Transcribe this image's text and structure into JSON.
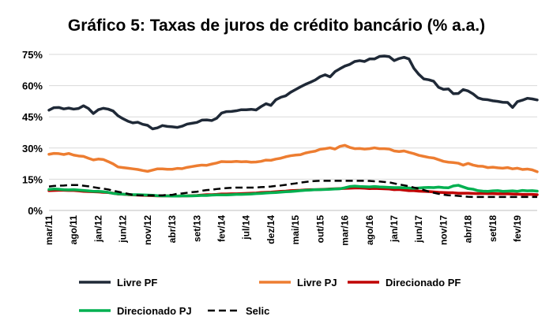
{
  "chart_data": {
    "type": "line",
    "title": "Gráfico 5: Taxas de juros de crédito bancário (% a.a.)",
    "xlabel": "",
    "ylabel": "",
    "ylim": [
      0,
      75
    ],
    "y_ticks": [
      0,
      15,
      30,
      45,
      60,
      75
    ],
    "y_tick_labels": [
      "0%",
      "15%",
      "30%",
      "45%",
      "60%",
      "75%"
    ],
    "grid": "horizontal",
    "legend_position": "bottom",
    "x_start": "mar/11",
    "n_months": 100,
    "x_tick_labels": [
      "mar/11",
      "ago/11",
      "jan/12",
      "jun/12",
      "nov/12",
      "abr/13",
      "set/13",
      "fev/14",
      "jul/14",
      "dez/14",
      "mai/15",
      "out/15",
      "mar/16",
      "ago/16",
      "jan/17",
      "jun/17",
      "nov/17",
      "abr/18",
      "set/18",
      "fev/19"
    ],
    "series": [
      {
        "name": "Livre PF",
        "color": "#1f2937",
        "dash": false,
        "values": [
          48.2,
          49.4,
          49.5,
          48.8,
          49.2,
          48.7,
          49.0,
          50.3,
          49.0,
          46.6,
          48.4,
          49.1,
          48.7,
          47.8,
          45.5,
          44.1,
          42.9,
          42.1,
          42.4,
          41.4,
          40.9,
          39.2,
          39.7,
          40.8,
          40.4,
          40.2,
          39.9,
          40.5,
          41.5,
          41.9,
          42.3,
          43.4,
          43.5,
          43.2,
          44.3,
          46.8,
          47.5,
          47.6,
          47.9,
          48.4,
          48.4,
          48.6,
          48.3,
          49.9,
          51.3,
          50.5,
          53.2,
          54.4,
          55.1,
          56.8,
          58.1,
          59.4,
          60.6,
          61.6,
          62.7,
          64.3,
          65.2,
          64.2,
          66.7,
          68.1,
          69.4,
          70.2,
          71.6,
          72.0,
          71.6,
          72.8,
          72.8,
          74.0,
          74.2,
          73.9,
          72.0,
          73.0,
          73.6,
          72.8,
          68.3,
          65.4,
          63.2,
          62.8,
          62.1,
          59.2,
          58.2,
          58.4,
          56.1,
          56.2,
          58.1,
          57.4,
          56.0,
          54.1,
          53.4,
          53.2,
          52.7,
          52.4,
          52.0,
          51.9,
          49.5,
          52.3,
          53.0,
          53.9,
          53.6,
          53.1
        ]
      },
      {
        "name": "Livre PJ",
        "color": "#ed7d31",
        "dash": false,
        "values": [
          27.0,
          27.4,
          27.3,
          26.9,
          27.4,
          26.6,
          26.2,
          26.0,
          25.1,
          24.3,
          24.7,
          24.5,
          23.5,
          22.4,
          20.9,
          20.6,
          20.3,
          20.0,
          19.7,
          19.2,
          18.8,
          19.4,
          20.0,
          20.0,
          19.8,
          19.8,
          20.2,
          20.1,
          20.7,
          21.1,
          21.5,
          21.8,
          21.7,
          22.3,
          22.8,
          23.5,
          23.4,
          23.4,
          23.6,
          23.4,
          23.5,
          23.2,
          23.3,
          23.6,
          24.2,
          24.1,
          24.7,
          25.1,
          25.8,
          26.3,
          26.6,
          26.8,
          27.6,
          28.1,
          28.5,
          29.4,
          29.7,
          30.1,
          29.5,
          30.8,
          31.3,
          30.3,
          29.7,
          29.8,
          29.5,
          29.7,
          30.1,
          29.7,
          29.7,
          29.5,
          28.6,
          28.3,
          28.6,
          27.9,
          27.3,
          26.5,
          26.0,
          25.5,
          25.2,
          24.4,
          23.6,
          23.2,
          23.0,
          22.7,
          21.8,
          22.6,
          21.8,
          21.3,
          21.2,
          20.6,
          20.8,
          20.5,
          20.3,
          20.6,
          20.0,
          20.3,
          19.7,
          19.9,
          19.5,
          18.6
        ]
      },
      {
        "name": "Direcionado PF",
        "color": "#c00000",
        "dash": false,
        "values": [
          9.5,
          9.6,
          9.7,
          9.7,
          9.6,
          9.6,
          9.4,
          9.2,
          9.1,
          9.0,
          8.9,
          8.7,
          8.6,
          8.3,
          7.9,
          7.8,
          7.6,
          7.5,
          7.4,
          7.3,
          7.2,
          7.1,
          7.0,
          7.0,
          7.0,
          7.0,
          6.9,
          7.0,
          7.0,
          7.1,
          7.2,
          7.4,
          7.6,
          7.6,
          7.7,
          7.9,
          7.9,
          8.0,
          8.0,
          8.1,
          8.2,
          8.3,
          8.4,
          8.6,
          8.7,
          8.8,
          9.0,
          9.2,
          9.3,
          9.5,
          9.6,
          9.7,
          9.9,
          10.0,
          10.0,
          10.1,
          10.2,
          10.3,
          10.4,
          10.5,
          10.6,
          10.7,
          10.8,
          10.8,
          10.7,
          10.5,
          10.6,
          10.5,
          10.4,
          10.3,
          10.0,
          10.1,
          9.8,
          9.5,
          9.5,
          9.3,
          9.2,
          9.1,
          8.9,
          8.7,
          8.6,
          8.5,
          8.5,
          8.3,
          8.3,
          8.3,
          8.2,
          8.1,
          8.2,
          8.1,
          8.1,
          8.0,
          8.0,
          8.0,
          7.9,
          7.8,
          7.7,
          7.7,
          7.7,
          7.6
        ]
      },
      {
        "name": "Direcionado PJ",
        "color": "#00b050",
        "dash": false,
        "values": [
          10.1,
          10.3,
          10.2,
          10.0,
          9.9,
          10.0,
          9.8,
          9.6,
          9.4,
          9.2,
          9.2,
          9.0,
          8.7,
          8.2,
          8.0,
          7.8,
          7.7,
          7.6,
          7.6,
          7.5,
          7.4,
          7.3,
          7.1,
          7.0,
          7.0,
          6.9,
          6.9,
          7.0,
          7.0,
          7.0,
          7.1,
          7.2,
          7.2,
          7.4,
          7.5,
          7.5,
          7.5,
          7.6,
          7.7,
          7.7,
          7.8,
          7.9,
          8.1,
          8.2,
          8.4,
          8.5,
          8.6,
          8.8,
          9.0,
          9.1,
          9.3,
          9.5,
          9.7,
          9.8,
          10.0,
          10.0,
          10.1,
          10.2,
          10.3,
          10.4,
          10.9,
          11.5,
          11.7,
          11.5,
          11.4,
          11.3,
          11.5,
          11.3,
          11.2,
          11.1,
          11.0,
          11.0,
          10.9,
          10.8,
          10.6,
          10.8,
          11.0,
          11.1,
          11.0,
          11.2,
          11.0,
          10.9,
          11.8,
          12.1,
          11.3,
          10.5,
          10.2,
          9.5,
          9.3,
          9.2,
          9.4,
          9.5,
          9.2,
          9.3,
          9.4,
          9.2,
          9.6,
          9.4,
          9.5,
          9.3
        ]
      },
      {
        "name": "Selic",
        "color": "#000000",
        "dash": true,
        "values": [
          11.5,
          11.8,
          11.9,
          12.0,
          12.2,
          12.2,
          12.2,
          11.9,
          11.6,
          11.2,
          10.8,
          10.5,
          10.1,
          9.5,
          9.0,
          8.5,
          8.0,
          7.5,
          7.3,
          7.25,
          7.25,
          7.25,
          7.25,
          7.25,
          7.5,
          7.5,
          8.0,
          8.2,
          8.5,
          8.8,
          9.0,
          9.5,
          9.8,
          10.0,
          10.3,
          10.5,
          10.75,
          10.9,
          11.0,
          11.0,
          11.0,
          11.0,
          11.0,
          11.2,
          11.3,
          11.5,
          11.8,
          12.0,
          12.3,
          12.7,
          13.0,
          13.4,
          13.7,
          14.0,
          14.15,
          14.25,
          14.25,
          14.25,
          14.25,
          14.25,
          14.25,
          14.25,
          14.25,
          14.25,
          14.25,
          14.2,
          14.0,
          13.9,
          13.7,
          13.5,
          13.0,
          12.5,
          12.1,
          11.6,
          11.0,
          10.5,
          9.8,
          9.1,
          8.5,
          8.0,
          7.6,
          7.3,
          7.2,
          7.0,
          6.8,
          6.6,
          6.5,
          6.5,
          6.5,
          6.5,
          6.5,
          6.5,
          6.5,
          6.5,
          6.5,
          6.5,
          6.5,
          6.5,
          6.5,
          6.5
        ]
      }
    ]
  }
}
